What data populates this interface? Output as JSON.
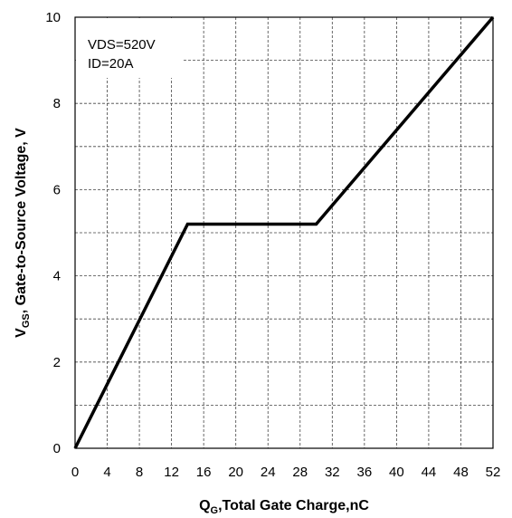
{
  "chart_data": {
    "type": "line",
    "title": "",
    "xlabel": {
      "main": "Q",
      "sub": "G",
      "rest": ",Total Gate Charge,nC"
    },
    "ylabel": {
      "main": "V",
      "sub": "GS",
      "rest": ", Gate-to-Source Voltage, V"
    },
    "xlim": [
      0,
      52
    ],
    "ylim": [
      0,
      10
    ],
    "xticks": [
      "0",
      "4",
      "8",
      "12",
      "16",
      "20",
      "24",
      "28",
      "32",
      "36",
      "40",
      "44",
      "48",
      "52"
    ],
    "yticks": [
      "0",
      "2",
      "4",
      "6",
      "8",
      "10"
    ],
    "grid": "dashed",
    "annotations": [
      "VDS=520V",
      "ID=20A"
    ],
    "series": [
      {
        "color": "#000000",
        "x": [
          0,
          14,
          30,
          52
        ],
        "y": [
          0,
          5.2,
          5.2,
          10
        ]
      }
    ]
  }
}
